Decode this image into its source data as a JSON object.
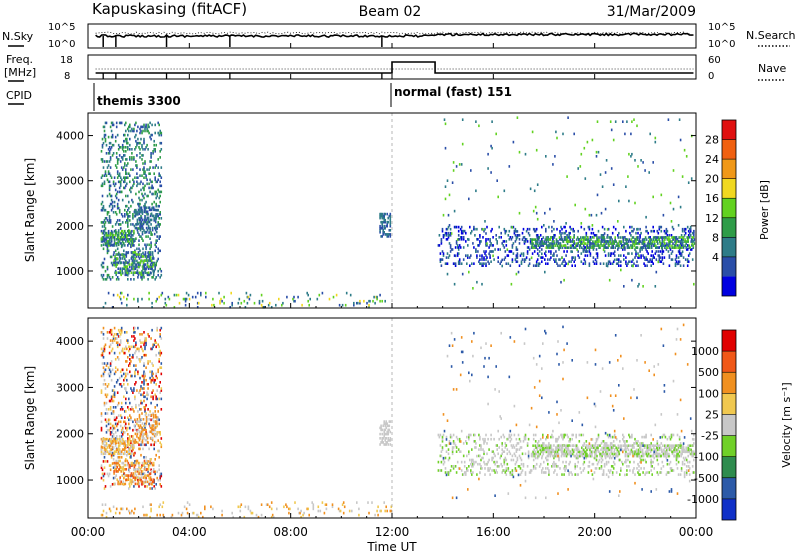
{
  "header": {
    "station": "Kapuskasing (fitACF)",
    "beam": "Beam 02",
    "date": "31/Mar/2009"
  },
  "noise_panel": {
    "left_label": "N.Sky",
    "right_label": "N.Search",
    "left_ticks": [
      "10^5",
      "10^0"
    ],
    "right_ticks": [
      "10^5",
      "10^0"
    ]
  },
  "freq_panel": {
    "left_label_line1": "Freq.",
    "left_label_line2": "[MHz]",
    "right_label": "Nave",
    "left_ticks": [
      "18",
      "8"
    ],
    "right_ticks": [
      "60",
      "0"
    ]
  },
  "cpid": {
    "label": "CPID",
    "segments": [
      {
        "name": "themis 3300",
        "start_hour": 0.5,
        "end_hour": 12.0
      },
      {
        "name": "normal (fast) 151",
        "start_hour": 12.0,
        "end_hour": 24.0
      }
    ]
  },
  "chart_data": [
    {
      "type": "heatmap",
      "name": "power",
      "ylabel": "Slant Range [km]",
      "yticks": [
        "4000",
        "3000",
        "2000",
        "1000"
      ],
      "ylim": [
        180,
        4500
      ],
      "colorbar_label": "Power [dB]",
      "colorbar_ticks": [
        "28",
        "24",
        "20",
        "16",
        "12",
        "8",
        "4"
      ],
      "colorbar_colors": [
        "#0000e0",
        "#2a4ea8",
        "#2e7c88",
        "#2e9c48",
        "#62d220",
        "#f0d820",
        "#f09818",
        "#f06010",
        "#e01010"
      ],
      "regions": [
        {
          "t0": 0.5,
          "t1": 2.9,
          "r0": 800,
          "r1": 4300,
          "density": 0.18,
          "c": [
            1,
            2,
            3
          ]
        },
        {
          "t0": 0.5,
          "t1": 1.8,
          "r0": 1550,
          "r1": 1900,
          "density": 0.5,
          "c": [
            1,
            2,
            3,
            4
          ]
        },
        {
          "t0": 1.0,
          "t1": 2.6,
          "r0": 900,
          "r1": 1400,
          "density": 0.35,
          "c": [
            1,
            2,
            4
          ]
        },
        {
          "t0": 1.8,
          "t1": 2.7,
          "r0": 1800,
          "r1": 2400,
          "density": 0.3,
          "c": [
            1,
            2
          ]
        },
        {
          "t0": 0.5,
          "t1": 12.0,
          "r0": 180,
          "r1": 520,
          "density": 0.06,
          "c": [
            1,
            2,
            4,
            5
          ]
        },
        {
          "t0": 11.5,
          "t1": 11.9,
          "r0": 1750,
          "r1": 2250,
          "density": 0.45,
          "c": [
            1,
            2
          ]
        },
        {
          "t0": 13.8,
          "t1": 23.9,
          "r0": 1100,
          "r1": 2000,
          "density": 0.16,
          "c": [
            0,
            1,
            2
          ]
        },
        {
          "t0": 17.5,
          "t1": 23.9,
          "r0": 1500,
          "r1": 1750,
          "density": 0.45,
          "c": [
            1,
            2,
            3,
            4
          ]
        },
        {
          "t0": 14.0,
          "t1": 23.9,
          "r0": 600,
          "r1": 4400,
          "density": 0.01,
          "c": [
            1,
            2,
            4
          ]
        }
      ]
    },
    {
      "type": "heatmap",
      "name": "velocity",
      "xlabel": "Time UT",
      "xticks": [
        "00:00",
        "04:00",
        "08:00",
        "12:00",
        "16:00",
        "20:00",
        "00:00"
      ],
      "xlim": [
        0,
        24
      ],
      "ylabel": "Slant Range [km]",
      "yticks": [
        "4000",
        "3000",
        "2000",
        "1000"
      ],
      "ylim": [
        180,
        4500
      ],
      "colorbar_label": "Velocity [m s⁻¹]",
      "colorbar_ticks": [
        "1000",
        "500",
        "100",
        "25",
        "-25",
        "-100",
        "-500",
        "-1000"
      ],
      "colorbar_colors": [
        "#1030c8",
        "#2c5aa8",
        "#2e8c4e",
        "#70d028",
        "#c8c8c8",
        "#f0c850",
        "#f09020",
        "#f05818",
        "#e00000"
      ],
      "regions": [
        {
          "t0": 0.5,
          "t1": 2.9,
          "r0": 800,
          "r1": 4300,
          "density": 0.16,
          "c": [
            4,
            5,
            6,
            8,
            1
          ]
        },
        {
          "t0": 0.5,
          "t1": 1.8,
          "r0": 1550,
          "r1": 1900,
          "density": 0.5,
          "c": [
            4,
            5,
            6
          ]
        },
        {
          "t0": 1.0,
          "t1": 2.6,
          "r0": 900,
          "r1": 1400,
          "density": 0.35,
          "c": [
            4,
            5,
            6,
            7
          ]
        },
        {
          "t0": 1.8,
          "t1": 2.7,
          "r0": 1800,
          "r1": 2400,
          "density": 0.3,
          "c": [
            4,
            6
          ]
        },
        {
          "t0": 0.5,
          "t1": 12.0,
          "r0": 180,
          "r1": 520,
          "density": 0.06,
          "c": [
            4,
            5,
            6
          ]
        },
        {
          "t0": 11.5,
          "t1": 11.9,
          "r0": 1750,
          "r1": 2250,
          "density": 0.45,
          "c": [
            4
          ]
        },
        {
          "t0": 13.8,
          "t1": 23.9,
          "r0": 1100,
          "r1": 2000,
          "density": 0.16,
          "c": [
            4,
            4,
            4,
            3
          ]
        },
        {
          "t0": 17.5,
          "t1": 23.9,
          "r0": 1500,
          "r1": 1750,
          "density": 0.45,
          "c": [
            4,
            4,
            3
          ]
        },
        {
          "t0": 14.0,
          "t1": 23.9,
          "r0": 600,
          "r1": 4400,
          "density": 0.01,
          "c": [
            4,
            1,
            6
          ]
        }
      ]
    }
  ]
}
